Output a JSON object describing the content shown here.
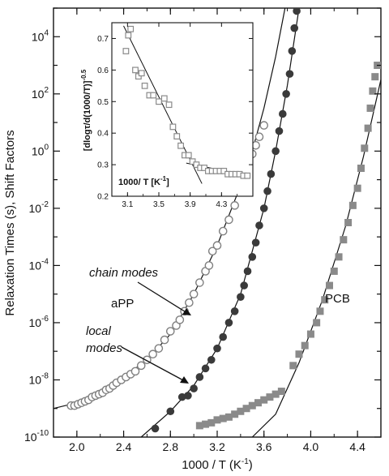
{
  "chart_data": [
    {
      "type": "scatter",
      "title": "",
      "xlabel": "1000 / T (K-1)",
      "ylabel": "Relaxation Times (s), Shift Factors",
      "xlim": [
        1.8,
        4.6
      ],
      "ylim_log10": [
        -10,
        5
      ],
      "y_scale": "log",
      "grid": false,
      "x_tick_labels": [
        "2.0",
        "2.4",
        "2.8",
        "3.2",
        "3.6",
        "4.0",
        "4.4"
      ],
      "x_ticks": [
        2.0,
        2.4,
        2.8,
        3.2,
        3.6,
        4.0,
        4.4
      ],
      "y_tick_exponents": [
        -10,
        -8,
        -6,
        -4,
        -2,
        0,
        2,
        4
      ],
      "series": [
        {
          "name": "chain modes (aPP)",
          "marker": "open-circle",
          "color": "#808080",
          "points": [
            [
              1.95,
              -8.9
            ],
            [
              1.98,
              -8.9
            ],
            [
              2.01,
              -8.85
            ],
            [
              2.04,
              -8.8
            ],
            [
              2.07,
              -8.75
            ],
            [
              2.1,
              -8.7
            ],
            [
              2.13,
              -8.6
            ],
            [
              2.16,
              -8.55
            ],
            [
              2.19,
              -8.5
            ],
            [
              2.22,
              -8.45
            ],
            [
              2.25,
              -8.35
            ],
            [
              2.28,
              -8.3
            ],
            [
              2.31,
              -8.2
            ],
            [
              2.34,
              -8.1
            ],
            [
              2.38,
              -8.0
            ],
            [
              2.42,
              -7.9
            ],
            [
              2.46,
              -7.8
            ],
            [
              2.5,
              -7.7
            ],
            [
              2.55,
              -7.5
            ],
            [
              2.6,
              -7.3
            ],
            [
              2.65,
              -7.1
            ],
            [
              2.7,
              -6.9
            ],
            [
              2.75,
              -6.6
            ],
            [
              2.8,
              -6.3
            ],
            [
              2.85,
              -6.1
            ],
            [
              2.88,
              -5.9
            ],
            [
              2.92,
              -5.6
            ],
            [
              2.96,
              -5.3
            ],
            [
              3.0,
              -5.0
            ],
            [
              3.05,
              -4.6
            ],
            [
              3.1,
              -4.2
            ],
            [
              3.13,
              -4.0
            ],
            [
              3.16,
              -3.5
            ],
            [
              3.2,
              -3.3
            ],
            [
              3.25,
              -2.8
            ],
            [
              3.3,
              -2.4
            ],
            [
              3.35,
              -1.9
            ],
            [
              3.4,
              -1.3
            ],
            [
              3.45,
              -0.7
            ],
            [
              3.5,
              -0.1
            ],
            [
              3.53,
              0.2
            ],
            [
              3.56,
              0.5
            ],
            [
              3.6,
              0.9
            ]
          ]
        },
        {
          "name": "local modes (aPP)",
          "marker": "filled-circle",
          "color": "#3a3a3a",
          "points": [
            [
              2.67,
              -9.7
            ],
            [
              2.8,
              -9.1
            ],
            [
              2.9,
              -8.6
            ],
            [
              2.95,
              -8.55
            ],
            [
              3.0,
              -8.3
            ],
            [
              3.05,
              -7.9
            ],
            [
              3.1,
              -7.6
            ],
            [
              3.15,
              -7.3
            ],
            [
              3.2,
              -6.9
            ],
            [
              3.25,
              -6.5
            ],
            [
              3.3,
              -6.0
            ],
            [
              3.35,
              -5.6
            ],
            [
              3.4,
              -5.1
            ],
            [
              3.43,
              -4.7
            ],
            [
              3.46,
              -4.2
            ],
            [
              3.5,
              -3.7
            ],
            [
              3.53,
              -3.2
            ],
            [
              3.56,
              -2.6
            ],
            [
              3.6,
              -2.0
            ],
            [
              3.63,
              -1.4
            ],
            [
              3.66,
              -0.8
            ],
            [
              3.7,
              0.0
            ],
            [
              3.73,
              0.7
            ],
            [
              3.76,
              1.3
            ],
            [
              3.79,
              2.0
            ],
            [
              3.82,
              2.7
            ],
            [
              3.84,
              3.5
            ],
            [
              3.86,
              4.3
            ],
            [
              3.88,
              4.9
            ]
          ]
        },
        {
          "name": "PCB",
          "marker": "filled-square",
          "color": "#8a8a8a",
          "points": [
            [
              3.05,
              -9.6
            ],
            [
              3.1,
              -9.55
            ],
            [
              3.15,
              -9.5
            ],
            [
              3.2,
              -9.4
            ],
            [
              3.25,
              -9.35
            ],
            [
              3.3,
              -9.3
            ],
            [
              3.35,
              -9.2
            ],
            [
              3.4,
              -9.1
            ],
            [
              3.45,
              -9.0
            ],
            [
              3.5,
              -8.9
            ],
            [
              3.55,
              -8.8
            ],
            [
              3.6,
              -8.7
            ],
            [
              3.65,
              -8.6
            ],
            [
              3.7,
              -8.5
            ],
            [
              3.75,
              -8.4
            ],
            [
              3.85,
              -7.5
            ],
            [
              3.9,
              -7.1
            ],
            [
              3.95,
              -6.8
            ],
            [
              4.0,
              -6.4
            ],
            [
              4.05,
              -6.0
            ],
            [
              4.08,
              -5.6
            ],
            [
              4.12,
              -5.2
            ],
            [
              4.16,
              -4.7
            ],
            [
              4.2,
              -4.2
            ],
            [
              4.24,
              -3.7
            ],
            [
              4.28,
              -3.1
            ],
            [
              4.32,
              -2.5
            ],
            [
              4.36,
              -1.9
            ],
            [
              4.4,
              -1.3
            ],
            [
              4.43,
              -0.6
            ],
            [
              4.46,
              0.1
            ],
            [
              4.49,
              0.8
            ],
            [
              4.51,
              1.5
            ],
            [
              4.53,
              2.1
            ],
            [
              4.55,
              2.6
            ],
            [
              4.57,
              3.0
            ]
          ]
        }
      ],
      "fit_curves": [
        {
          "name": "chain modes fit",
          "points": [
            [
              1.8,
              -9.0
            ],
            [
              2.0,
              -8.8
            ],
            [
              2.2,
              -8.4
            ],
            [
              2.4,
              -7.9
            ],
            [
              2.6,
              -7.3
            ],
            [
              2.8,
              -6.4
            ],
            [
              3.0,
              -5.0
            ],
            [
              3.2,
              -3.3
            ],
            [
              3.4,
              -1.2
            ],
            [
              3.5,
              0.0
            ],
            [
              3.6,
              1.5
            ],
            [
              3.7,
              3.3
            ],
            [
              3.78,
              5.0
            ]
          ]
        },
        {
          "name": "local modes fit",
          "points": [
            [
              2.55,
              -10.0
            ],
            [
              2.8,
              -9.1
            ],
            [
              3.0,
              -8.2
            ],
            [
              3.2,
              -6.9
            ],
            [
              3.4,
              -5.0
            ],
            [
              3.6,
              -2.0
            ],
            [
              3.7,
              0.0
            ],
            [
              3.8,
              2.3
            ],
            [
              3.9,
              5.0
            ]
          ]
        },
        {
          "name": "PCB fit",
          "points": [
            [
              3.5,
              -10.0
            ],
            [
              3.7,
              -9.2
            ],
            [
              3.9,
              -7.4
            ],
            [
              4.1,
              -5.2
            ],
            [
              4.3,
              -2.6
            ],
            [
              4.45,
              -0.2
            ],
            [
              4.6,
              2.5
            ]
          ]
        }
      ],
      "annotations": [
        "chain modes",
        "aPP",
        "local modes",
        "PCB"
      ]
    },
    {
      "type": "scatter",
      "title": "",
      "xlabel": "1000/ T [K-1]",
      "ylabel": "[dlogτ/d(1000/T)]-0.5",
      "xlim": [
        2.9,
        4.7
      ],
      "ylim": [
        0.2,
        0.75
      ],
      "grid": false,
      "x_tick_labels": [
        "3.1",
        "3.5",
        "3.9",
        "4.3"
      ],
      "x_ticks": [
        3.1,
        3.5,
        3.9,
        4.3
      ],
      "y_tick_labels": [
        "0.2",
        "0.3",
        "0.4",
        "0.5",
        "0.6",
        "0.7"
      ],
      "y_ticks": [
        0.2,
        0.3,
        0.4,
        0.5,
        0.6,
        0.7
      ],
      "series": [
        {
          "name": "",
          "marker": "open-square",
          "color": "#8a8a8a",
          "points": [
            [
              3.08,
              0.66
            ],
            [
              3.11,
              0.71
            ],
            [
              3.14,
              0.73
            ],
            [
              3.2,
              0.6
            ],
            [
              3.24,
              0.58
            ],
            [
              3.28,
              0.59
            ],
            [
              3.32,
              0.55
            ],
            [
              3.38,
              0.52
            ],
            [
              3.43,
              0.52
            ],
            [
              3.5,
              0.5
            ],
            [
              3.57,
              0.51
            ],
            [
              3.63,
              0.49
            ],
            [
              3.68,
              0.42
            ],
            [
              3.73,
              0.39
            ],
            [
              3.78,
              0.36
            ],
            [
              3.83,
              0.33
            ],
            [
              3.88,
              0.33
            ],
            [
              3.93,
              0.31
            ],
            [
              3.98,
              0.3
            ],
            [
              4.03,
              0.29
            ],
            [
              4.08,
              0.29
            ],
            [
              4.13,
              0.28
            ],
            [
              4.18,
              0.28
            ],
            [
              4.23,
              0.28
            ],
            [
              4.28,
              0.28
            ],
            [
              4.33,
              0.28
            ],
            [
              4.38,
              0.27
            ],
            [
              4.43,
              0.27
            ],
            [
              4.48,
              0.27
            ],
            [
              4.53,
              0.27
            ],
            [
              4.58,
              0.265
            ],
            [
              4.63,
              0.265
            ]
          ]
        }
      ],
      "fit_lines": [
        {
          "points": [
            [
              3.05,
              0.74
            ],
            [
              4.05,
              0.24
            ]
          ]
        },
        {
          "points": [
            [
              3.85,
              0.305
            ],
            [
              4.65,
              0.265
            ]
          ]
        }
      ]
    }
  ],
  "labels": {
    "main_xlabel_text": "1000 / T (K",
    "main_xlabel_sup": "-1",
    "main_xlabel_close": ")",
    "main_ylabel": "Relaxation Times (s), Shift Factors",
    "chain_modes": "chain modes",
    "app": "aPP",
    "local_1": "local",
    "local_2": "modes",
    "pcb": "PCB",
    "inset_xlabel_text": "1000/ T  [K",
    "inset_xlabel_sup": "-1",
    "inset_xlabel_close": "]",
    "inset_ylabel_main": "[dlogτ/d(1000/T)]",
    "inset_ylabel_sup": "-0.5",
    "y_tick_base": "10"
  }
}
